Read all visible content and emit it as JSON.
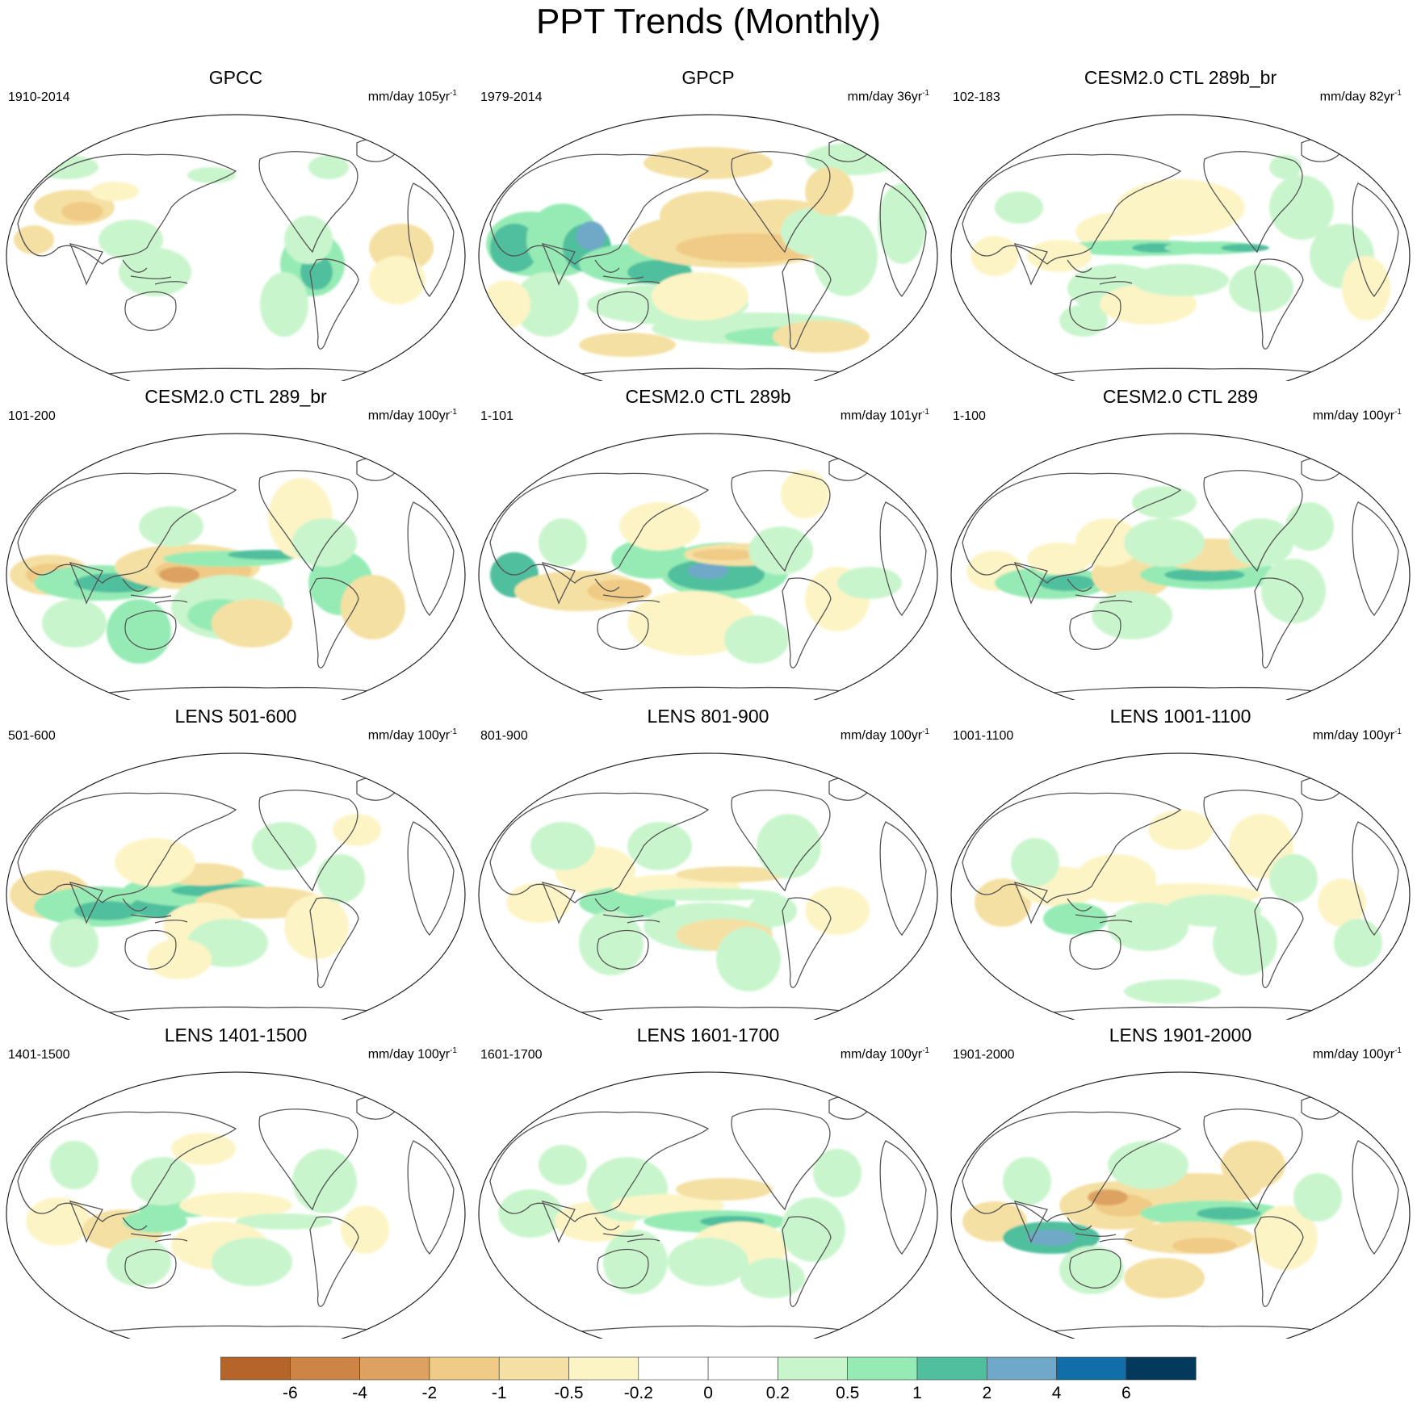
{
  "title": "PPT Trends (Monthly)",
  "panels": [
    {
      "title": "GPCC",
      "period": "1910-2014",
      "units": "mm/day 105yr",
      "units_exp": "-1",
      "coverage": "land-only",
      "pattern": "gpcc"
    },
    {
      "title": "GPCP",
      "period": "1979-2014",
      "units": "mm/day 36yr",
      "units_exp": "-1",
      "coverage": "global",
      "pattern": "gpcp"
    },
    {
      "title": "CESM2.0 CTL 289b_br",
      "period": "102-183",
      "units": "mm/day 82yr",
      "units_exp": "-1",
      "coverage": "global",
      "pattern": "cesm_a"
    },
    {
      "title": "CESM2.0 CTL 289_br",
      "period": "101-200",
      "units": "mm/day 100yr",
      "units_exp": "-1",
      "coverage": "global",
      "pattern": "cesm_b"
    },
    {
      "title": "CESM2.0 CTL 289b",
      "period": "1-101",
      "units": "mm/day 101yr",
      "units_exp": "-1",
      "coverage": "global",
      "pattern": "cesm_c"
    },
    {
      "title": "CESM2.0 CTL 289",
      "period": "1-100",
      "units": "mm/day 100yr",
      "units_exp": "-1",
      "coverage": "global",
      "pattern": "cesm_d"
    },
    {
      "title": "LENS 501-600",
      "period": "501-600",
      "units": "mm/day 100yr",
      "units_exp": "-1",
      "coverage": "global",
      "pattern": "lens_a"
    },
    {
      "title": "LENS 801-900",
      "period": "801-900",
      "units": "mm/day 100yr",
      "units_exp": "-1",
      "coverage": "global",
      "pattern": "lens_b"
    },
    {
      "title": "LENS 1001-1100",
      "period": "1001-1100",
      "units": "mm/day 100yr",
      "units_exp": "-1",
      "coverage": "global",
      "pattern": "lens_c"
    },
    {
      "title": "LENS 1401-1500",
      "period": "1401-1500",
      "units": "mm/day 100yr",
      "units_exp": "-1",
      "coverage": "global",
      "pattern": "lens_d"
    },
    {
      "title": "LENS 1601-1700",
      "period": "1601-1700",
      "units": "mm/day 100yr",
      "units_exp": "-1",
      "coverage": "global",
      "pattern": "lens_e"
    },
    {
      "title": "LENS 1901-2000",
      "period": "1901-2000",
      "units": "mm/day 100yr",
      "units_exp": "-1",
      "coverage": "global",
      "pattern": "lens_f"
    }
  ],
  "colorbar": {
    "labels": [
      "-6",
      "-4",
      "-2",
      "-1",
      "-0.5",
      "-0.2",
      "0",
      "0.2",
      "0.5",
      "1",
      "2",
      "4",
      "6"
    ],
    "colors": [
      "#b5652a",
      "#cc8544",
      "#dda262",
      "#f0cb86",
      "#f5e0a3",
      "#fdf4c6",
      "#ffffff",
      "#ffffff",
      "#c9f5cc",
      "#96ebb5",
      "#4fbf9d",
      "#6fa8c8",
      "#126ea8",
      "#033a5c"
    ]
  }
}
